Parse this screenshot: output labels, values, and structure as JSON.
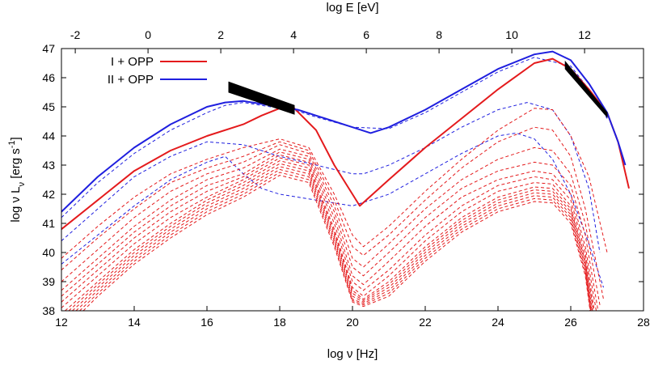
{
  "chart_data": {
    "type": "line",
    "xlabel": "log ν [Hz]",
    "ylabel": "log ν L",
    "ylabel_sub": "ν",
    "ylabel_unit": " [erg s",
    "ylabel_exp": "-1",
    "ylabel_close": "]",
    "x2label": "log E [eV]",
    "xlim": [
      12,
      28
    ],
    "ylim": [
      38,
      47
    ],
    "xticks": [
      12,
      14,
      16,
      18,
      20,
      22,
      24,
      26,
      28
    ],
    "yticks": [
      38,
      39,
      40,
      41,
      42,
      43,
      44,
      45,
      46,
      47
    ],
    "x2ticks": [
      -2,
      0,
      2,
      4,
      6,
      8,
      10,
      12
    ],
    "x2_offset": -14.38,
    "legend_position": "top-left",
    "colors": {
      "red": "#e41a1c",
      "blue": "#1f1fdf",
      "black": "#000000"
    },
    "series": [
      {
        "name": "I + OPP",
        "color": "#e41a1c",
        "style": "solid",
        "x": [
          12,
          13,
          14,
          15,
          16,
          17,
          17.5,
          18,
          18.4,
          19,
          19.5,
          20.2,
          21,
          22,
          23,
          24,
          25,
          25.5,
          26,
          26.5,
          27,
          27.3,
          27.6
        ],
        "y": [
          40.8,
          41.8,
          42.8,
          43.5,
          44.0,
          44.4,
          44.7,
          44.95,
          44.95,
          44.2,
          43.0,
          41.6,
          42.5,
          43.6,
          44.6,
          45.6,
          46.5,
          46.65,
          46.3,
          45.6,
          44.8,
          43.8,
          42.2
        ]
      },
      {
        "name": "II + OPP",
        "color": "#1f1fdf",
        "style": "solid",
        "x": [
          12,
          13,
          14,
          15,
          16,
          16.5,
          17,
          17.5,
          18,
          18.5,
          19,
          19.5,
          20,
          20.5,
          21,
          22,
          23,
          24,
          25,
          25.5,
          26,
          26.5,
          27,
          27.3,
          27.5
        ],
        "y": [
          41.4,
          42.6,
          43.6,
          44.4,
          45.0,
          45.15,
          45.2,
          45.1,
          45.0,
          44.9,
          44.7,
          44.5,
          44.3,
          44.1,
          44.3,
          44.9,
          45.6,
          46.3,
          46.8,
          46.9,
          46.6,
          45.8,
          44.8,
          43.8,
          43.0
        ]
      },
      {
        "color": "#1f1fdf",
        "style": "dashed",
        "x": [
          12,
          13,
          14,
          15,
          16,
          16.5,
          17,
          17.5,
          18,
          18.5,
          19,
          20,
          21,
          22,
          23,
          24,
          25,
          26,
          26.5,
          27
        ],
        "y": [
          41.2,
          42.4,
          43.4,
          44.2,
          44.8,
          45.05,
          45.15,
          45.05,
          44.95,
          44.85,
          44.65,
          44.3,
          44.25,
          44.8,
          45.5,
          46.2,
          46.7,
          46.4,
          45.6,
          44.6
        ]
      },
      {
        "color": "#1f1fdf",
        "style": "dashed",
        "x": [
          12,
          13,
          14,
          15,
          16,
          17,
          18,
          19,
          20,
          20.3,
          21,
          22,
          23,
          24,
          24.8,
          25.5,
          26,
          26.5,
          26.8
        ],
        "y": [
          40.4,
          41.5,
          42.6,
          43.3,
          43.8,
          43.7,
          43.3,
          43.0,
          42.7,
          42.7,
          43.0,
          43.6,
          44.3,
          44.9,
          45.15,
          44.9,
          44.0,
          42.2,
          40.0
        ]
      },
      {
        "color": "#1f1fdf",
        "style": "dashed",
        "x": [
          12,
          13,
          14,
          15,
          16,
          16.5,
          17,
          17.5,
          18,
          19,
          20,
          21,
          22,
          23,
          24,
          24.5,
          25,
          25.5,
          26,
          26.5,
          26.9
        ],
        "y": [
          39.6,
          40.6,
          41.6,
          42.5,
          43.1,
          43.3,
          42.7,
          42.2,
          42.0,
          41.8,
          41.6,
          42.0,
          42.7,
          43.4,
          44.0,
          44.1,
          43.9,
          43.2,
          42.0,
          40.3,
          38.8
        ]
      },
      {
        "color": "#e41a1c",
        "style": "dashed",
        "x": [
          12,
          13,
          14,
          15,
          16,
          17,
          18,
          18.8,
          19.5,
          20,
          20.3,
          21,
          22,
          23,
          24,
          25,
          25.5,
          26,
          26.5,
          27
        ],
        "y": [
          39.8,
          40.9,
          41.9,
          42.7,
          43.2,
          43.6,
          43.9,
          43.6,
          42.0,
          40.6,
          40.2,
          40.9,
          42.1,
          43.2,
          44.2,
          44.95,
          44.9,
          44.0,
          42.6,
          40.0
        ]
      },
      {
        "color": "#e41a1c",
        "style": "dashed",
        "x": [
          12,
          13,
          14,
          15,
          16,
          17,
          18,
          18.8,
          19.5,
          20,
          20.3,
          21,
          22,
          23,
          24,
          25,
          25.5,
          26,
          26.4,
          26.9
        ],
        "y": [
          39.4,
          40.5,
          41.5,
          42.4,
          42.9,
          43.3,
          43.8,
          43.5,
          41.8,
          40.2,
          39.9,
          40.6,
          41.8,
          42.9,
          43.8,
          44.3,
          44.2,
          43.3,
          41.5,
          38.4
        ]
      },
      {
        "color": "#e41a1c",
        "style": "dashed",
        "x": [
          12,
          13,
          14,
          15,
          16,
          17,
          18,
          18.8,
          19.5,
          20,
          20.3,
          21,
          22,
          23,
          24,
          25,
          25.5,
          26,
          26.4,
          26.8
        ],
        "y": [
          39.0,
          40.1,
          41.2,
          42.1,
          42.7,
          43.1,
          43.7,
          43.4,
          41.6,
          39.8,
          39.5,
          40.3,
          41.5,
          42.5,
          43.2,
          43.6,
          43.5,
          42.7,
          41.0,
          38.2
        ]
      },
      {
        "color": "#e41a1c",
        "style": "dashed",
        "x": [
          12,
          13,
          14,
          15,
          16,
          17,
          18,
          18.8,
          19.5,
          20,
          20.3,
          21,
          22,
          23,
          24,
          25,
          25.5,
          26,
          26.4,
          26.75
        ],
        "y": [
          38.7,
          39.8,
          40.9,
          41.8,
          42.5,
          42.9,
          43.55,
          43.3,
          41.4,
          39.5,
          39.2,
          40.0,
          41.2,
          42.2,
          42.8,
          43.1,
          43.0,
          42.3,
          40.6,
          38.0
        ]
      },
      {
        "color": "#e41a1c",
        "style": "dashed",
        "x": [
          12,
          13,
          14,
          15,
          16,
          17,
          18,
          18.8,
          19.5,
          20,
          20.3,
          21,
          22,
          23,
          24,
          25,
          25.5,
          26,
          26.4,
          26.7
        ],
        "y": [
          38.5,
          39.6,
          40.7,
          41.6,
          42.3,
          42.7,
          43.45,
          43.2,
          41.2,
          39.2,
          38.9,
          39.7,
          40.9,
          41.9,
          42.5,
          42.8,
          42.7,
          42.0,
          40.2,
          38.0
        ]
      },
      {
        "color": "#e41a1c",
        "style": "dashed",
        "x": [
          12,
          13,
          14,
          15,
          16,
          17,
          18,
          18.8,
          19.5,
          20,
          20.3,
          21,
          22,
          23,
          24,
          25,
          25.5,
          26,
          26.4,
          26.65
        ],
        "y": [
          38.3,
          39.4,
          40.5,
          41.4,
          42.1,
          42.6,
          43.35,
          43.1,
          41.0,
          39.0,
          38.7,
          39.4,
          40.6,
          41.6,
          42.3,
          42.6,
          42.5,
          41.8,
          40.0,
          38.0
        ]
      },
      {
        "color": "#e41a1c",
        "style": "dashed",
        "x": [
          12,
          13,
          14,
          15,
          16,
          17,
          18,
          18.8,
          19.5,
          20,
          20.3,
          21,
          22,
          23,
          24,
          25,
          25.5,
          26,
          26.4,
          26.62
        ],
        "y": [
          38.1,
          39.2,
          40.3,
          41.2,
          41.9,
          42.5,
          43.25,
          43.0,
          40.8,
          38.8,
          38.5,
          39.2,
          40.4,
          41.4,
          42.1,
          42.4,
          42.35,
          41.6,
          39.8,
          38.0
        ]
      },
      {
        "color": "#e41a1c",
        "style": "dashed",
        "x": [
          12.1,
          13,
          14,
          15,
          16,
          17,
          18,
          18.8,
          19.5,
          20,
          20.3,
          21,
          22,
          23,
          24,
          25,
          25.5,
          26,
          26.4,
          26.6
        ],
        "y": [
          38.0,
          39.0,
          40.1,
          41.0,
          41.8,
          42.4,
          43.15,
          42.9,
          40.7,
          38.7,
          38.4,
          39.0,
          40.2,
          41.2,
          41.9,
          42.25,
          42.2,
          41.5,
          39.7,
          38.0
        ]
      },
      {
        "color": "#e41a1c",
        "style": "dashed",
        "x": [
          12.2,
          13,
          14,
          15,
          16,
          17,
          18,
          18.8,
          19.5,
          20,
          20.3,
          21,
          22,
          23,
          24,
          25,
          25.5,
          26,
          26.4,
          26.58
        ],
        "y": [
          38.0,
          38.9,
          40.0,
          40.9,
          41.7,
          42.3,
          43.05,
          42.8,
          40.6,
          38.6,
          38.35,
          38.9,
          40.1,
          41.1,
          41.8,
          42.15,
          42.1,
          41.4,
          39.6,
          38.0
        ]
      },
      {
        "color": "#e41a1c",
        "style": "dashed",
        "x": [
          12.3,
          13,
          14,
          15,
          16,
          17,
          18,
          18.8,
          19.5,
          20,
          20.3,
          21,
          22,
          23,
          24,
          25,
          25.5,
          26,
          26.4,
          26.56
        ],
        "y": [
          38.0,
          38.8,
          39.9,
          40.8,
          41.6,
          42.2,
          42.95,
          42.7,
          40.5,
          38.5,
          38.3,
          38.8,
          40.0,
          41.0,
          41.7,
          42.05,
          42.0,
          41.3,
          39.5,
          38.0
        ]
      },
      {
        "color": "#e41a1c",
        "style": "dashed",
        "x": [
          12.4,
          13,
          14,
          15,
          16,
          17,
          18,
          18.8,
          19.5,
          20,
          20.3,
          21,
          22,
          23,
          24,
          25,
          25.5,
          26,
          26.4,
          26.55
        ],
        "y": [
          38.0,
          38.7,
          39.8,
          40.7,
          41.5,
          42.1,
          42.85,
          42.6,
          40.4,
          38.4,
          38.25,
          38.7,
          39.9,
          40.9,
          41.6,
          41.95,
          41.9,
          41.2,
          39.4,
          38.0
        ]
      },
      {
        "color": "#e41a1c",
        "style": "dashed",
        "x": [
          12.5,
          13,
          14,
          15,
          16,
          17,
          18,
          18.8,
          19.5,
          20,
          20.3,
          21,
          22,
          23,
          24,
          25,
          25.5,
          26,
          26.4,
          26.54
        ],
        "y": [
          38.0,
          38.6,
          39.7,
          40.6,
          41.4,
          42.0,
          42.75,
          42.5,
          40.3,
          38.35,
          38.2,
          38.6,
          39.8,
          40.8,
          41.5,
          41.85,
          41.8,
          41.1,
          39.3,
          38.0
        ]
      },
      {
        "color": "#e41a1c",
        "style": "dashed",
        "x": [
          12.6,
          13,
          14,
          15,
          16,
          17,
          18,
          18.8,
          19.5,
          20,
          20.3,
          21,
          22,
          23,
          24,
          25,
          25.5,
          26,
          26.4,
          26.53
        ],
        "y": [
          38.0,
          38.5,
          39.6,
          40.5,
          41.3,
          41.9,
          42.65,
          42.4,
          40.2,
          38.3,
          38.15,
          38.5,
          39.7,
          40.7,
          41.4,
          41.75,
          41.7,
          41.0,
          39.2,
          38.0
        ]
      }
    ],
    "data_bands": [
      {
        "x": [
          16.6,
          18.4
        ],
        "y_top": [
          45.85,
          45.05
        ],
        "y_bottom": [
          45.5,
          44.75
        ],
        "color": "#000000"
      },
      {
        "x": [
          25.85,
          27.0
        ],
        "y_top": [
          46.55,
          44.8
        ],
        "y_bottom": [
          46.3,
          44.65
        ],
        "color": "#000000"
      }
    ]
  }
}
